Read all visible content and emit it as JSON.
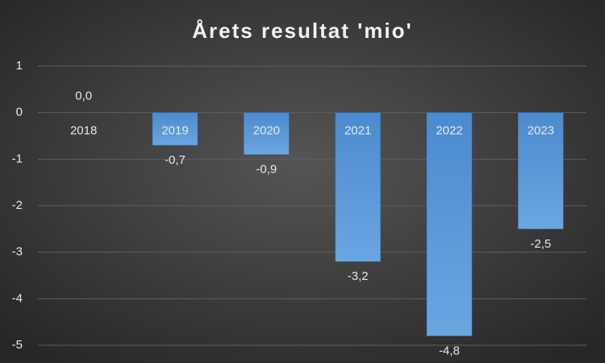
{
  "chart_data": {
    "type": "bar",
    "title": "Årets resultat 'mio'",
    "categories": [
      "2018",
      "2019",
      "2020",
      "2021",
      "2022",
      "2023"
    ],
    "values": [
      0,
      -0.7,
      -0.9,
      -3.2,
      -4.8,
      -2.5
    ],
    "value_labels": [
      "0,0",
      "-0,7",
      "-0,9",
      "-3,2",
      "-4,8",
      "-2,5"
    ],
    "color": "#5b9bd5",
    "ylim": [
      -5,
      1
    ],
    "yticks": [
      1,
      0,
      -1,
      -2,
      -3,
      -4,
      -5
    ],
    "grid": true
  }
}
